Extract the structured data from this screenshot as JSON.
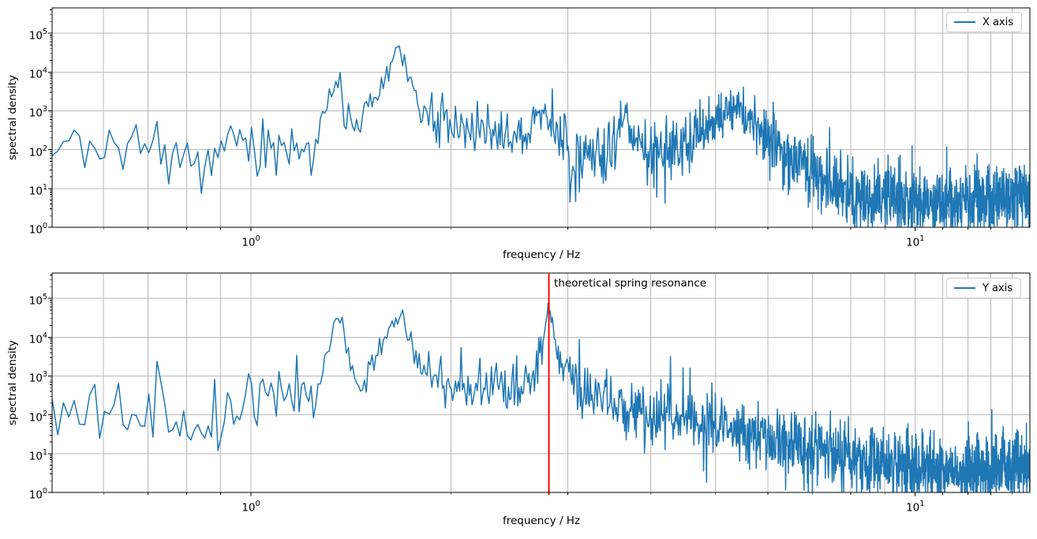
{
  "figure": {
    "background": "#ffffff",
    "grid_color": "#b9b9b9",
    "spine_color": "#000000",
    "tick_color": "#000000"
  },
  "chart_data": [
    {
      "type": "line",
      "title": "",
      "xlabel": "frequency / Hz",
      "ylabel": "spectral density",
      "xscale": "log",
      "yscale": "log",
      "xlim": [
        0.502,
        14.88
      ],
      "ylim": [
        1,
        450000
      ],
      "grid": "x: major+minor verticals, y: major horizontals",
      "xticks_major": [
        {
          "f": 1,
          "exp": "0"
        },
        {
          "f": 10,
          "exp": "1"
        }
      ],
      "xticks_minor": [
        0.6,
        0.7,
        0.8,
        0.9,
        2,
        3,
        4,
        5,
        6,
        7,
        8,
        9,
        11,
        12,
        13,
        14
      ],
      "yticks_exponents": [
        0,
        1,
        2,
        3,
        4,
        5
      ],
      "legend": {
        "position": "upper right",
        "entries": [
          {
            "label": "X axis",
            "color": "#1f77b4"
          }
        ]
      },
      "annotations": [],
      "series": [
        {
          "name": "X axis",
          "color": "#1f77b4",
          "linewidth": 1.5,
          "sampling": {
            "f_start": 0.502,
            "f_end": 14.88,
            "df": 0.01,
            "seed": 20,
            "noise": "lognormal-decades"
          },
          "envelope_hz_value_sigma": [
            [
              0.5,
              110,
              0.35
            ],
            [
              0.62,
              120,
              0.35
            ],
            [
              0.75,
              130,
              0.35
            ],
            [
              0.82,
              60,
              0.45
            ],
            [
              0.84,
              15,
              0.55
            ],
            [
              0.86,
              100,
              0.35
            ],
            [
              1.0,
              110,
              0.32
            ],
            [
              1.15,
              120,
              0.32
            ],
            [
              1.26,
              140,
              0.32
            ],
            [
              1.3,
              1500,
              0.3
            ],
            [
              1.33,
              6000,
              0.22
            ],
            [
              1.36,
              4000,
              0.28
            ],
            [
              1.4,
              900,
              0.3
            ],
            [
              1.45,
              350,
              0.3
            ],
            [
              1.5,
              900,
              0.3
            ],
            [
              1.55,
              2500,
              0.28
            ],
            [
              1.6,
              8000,
              0.22
            ],
            [
              1.645,
              30000,
              0.15
            ],
            [
              1.67,
              52000,
              0.12
            ],
            [
              1.7,
              15000,
              0.2
            ],
            [
              1.75,
              3500,
              0.25
            ],
            [
              1.8,
              1200,
              0.28
            ],
            [
              1.9,
              600,
              0.3
            ],
            [
              2.0,
              420,
              0.3
            ],
            [
              2.15,
              330,
              0.32
            ],
            [
              2.3,
              280,
              0.32
            ],
            [
              2.45,
              260,
              0.32
            ],
            [
              2.6,
              300,
              0.32
            ],
            [
              2.7,
              500,
              0.3
            ],
            [
              2.76,
              1800,
              0.22
            ],
            [
              2.8,
              700,
              0.28
            ],
            [
              2.9,
              250,
              0.32
            ],
            [
              3.0,
              90,
              0.4
            ],
            [
              3.05,
              12,
              0.55
            ],
            [
              3.1,
              45,
              0.42
            ],
            [
              3.25,
              60,
              0.42
            ],
            [
              3.4,
              70,
              0.42
            ],
            [
              3.55,
              130,
              0.35
            ],
            [
              3.64,
              1200,
              0.28
            ],
            [
              3.68,
              600,
              0.3
            ],
            [
              3.75,
              160,
              0.35
            ],
            [
              3.9,
              90,
              0.4
            ],
            [
              4.05,
              80,
              0.42
            ],
            [
              4.2,
              90,
              0.42
            ],
            [
              4.4,
              120,
              0.4
            ],
            [
              4.6,
              200,
              0.38
            ],
            [
              4.8,
              350,
              0.35
            ],
            [
              5.0,
              600,
              0.33
            ],
            [
              5.2,
              1000,
              0.3
            ],
            [
              5.35,
              1300,
              0.3
            ],
            [
              5.5,
              900,
              0.32
            ],
            [
              5.7,
              500,
              0.35
            ],
            [
              5.9,
              280,
              0.38
            ],
            [
              6.1,
              160,
              0.4
            ],
            [
              6.4,
              80,
              0.42
            ],
            [
              6.7,
              40,
              0.45
            ],
            [
              7.0,
              25,
              0.45
            ],
            [
              7.4,
              14,
              0.45
            ],
            [
              7.8,
              9,
              0.45
            ],
            [
              8.2,
              6.5,
              0.45
            ],
            [
              8.8,
              5.5,
              0.45
            ],
            [
              9.5,
              5,
              0.45
            ],
            [
              10.5,
              4.5,
              0.45
            ],
            [
              11.5,
              4.2,
              0.45
            ],
            [
              12.5,
              4.5,
              0.45
            ],
            [
              13.5,
              5,
              0.45
            ],
            [
              14.9,
              6,
              0.45
            ]
          ]
        }
      ]
    },
    {
      "type": "line",
      "title": "",
      "xlabel": "frequency / Hz",
      "ylabel": "spectral density",
      "xscale": "log",
      "yscale": "log",
      "xlim": [
        0.502,
        14.88
      ],
      "ylim": [
        1,
        450000
      ],
      "grid": "x: major+minor verticals, y: major horizontals",
      "xticks_major": [
        {
          "f": 1,
          "exp": "0"
        },
        {
          "f": 10,
          "exp": "1"
        }
      ],
      "xticks_minor": [
        0.6,
        0.7,
        0.8,
        0.9,
        2,
        3,
        4,
        5,
        6,
        7,
        8,
        9,
        11,
        12,
        13,
        14
      ],
      "yticks_exponents": [
        0,
        1,
        2,
        3,
        4,
        5
      ],
      "legend": {
        "position": "upper right",
        "entries": [
          {
            "label": "Y axis",
            "color": "#1f77b4"
          }
        ]
      },
      "vline": {
        "x_hz": 2.81,
        "color": "#ff0000",
        "linewidth": 2
      },
      "annotations": [
        {
          "text": "theoretical spring resonance",
          "x_hz": 2.86,
          "position": "top, right of vline"
        }
      ],
      "series": [
        {
          "name": "Y axis",
          "color": "#1f77b4",
          "linewidth": 1.5,
          "sampling": {
            "f_start": 0.502,
            "f_end": 14.88,
            "df": 0.01,
            "seed": 77,
            "noise": "lognormal-decades"
          },
          "envelope_hz_value_sigma": [
            [
              0.5,
              70,
              0.45
            ],
            [
              0.6,
              100,
              0.45
            ],
            [
              0.7,
              120,
              0.45
            ],
            [
              0.8,
              110,
              0.48
            ],
            [
              0.9,
              130,
              0.48
            ],
            [
              1.0,
              160,
              0.45
            ],
            [
              1.1,
              250,
              0.42
            ],
            [
              1.2,
              400,
              0.38
            ],
            [
              1.27,
              900,
              0.32
            ],
            [
              1.31,
              8000,
              0.22
            ],
            [
              1.345,
              45000,
              0.12
            ],
            [
              1.37,
              20000,
              0.18
            ],
            [
              1.41,
              3000,
              0.25
            ],
            [
              1.45,
              400,
              0.3
            ],
            [
              1.5,
              700,
              0.3
            ],
            [
              1.55,
              2500,
              0.25
            ],
            [
              1.6,
              9000,
              0.2
            ],
            [
              1.65,
              25000,
              0.15
            ],
            [
              1.68,
              33000,
              0.13
            ],
            [
              1.72,
              12000,
              0.2
            ],
            [
              1.78,
              3000,
              0.25
            ],
            [
              1.85,
              1200,
              0.3
            ],
            [
              1.95,
              600,
              0.38
            ],
            [
              2.05,
              450,
              0.45
            ],
            [
              2.2,
              380,
              0.48
            ],
            [
              2.35,
              450,
              0.42
            ],
            [
              2.5,
              550,
              0.38
            ],
            [
              2.62,
              800,
              0.33
            ],
            [
              2.7,
              2500,
              0.25
            ],
            [
              2.76,
              12000,
              0.18
            ],
            [
              2.8,
              60000,
              0.1
            ],
            [
              2.82,
              70000,
              0.1
            ],
            [
              2.86,
              9000,
              0.2
            ],
            [
              2.92,
              2000,
              0.28
            ],
            [
              3.0,
              900,
              0.32
            ],
            [
              3.1,
              500,
              0.35
            ],
            [
              3.25,
              320,
              0.4
            ],
            [
              3.45,
              220,
              0.42
            ],
            [
              3.7,
              150,
              0.45
            ],
            [
              4.0,
              110,
              0.45
            ],
            [
              4.3,
              85,
              0.45
            ],
            [
              4.6,
              70,
              0.45
            ],
            [
              5.0,
              55,
              0.45
            ],
            [
              5.4,
              40,
              0.45
            ],
            [
              5.8,
              30,
              0.45
            ],
            [
              6.2,
              22,
              0.45
            ],
            [
              6.7,
              15,
              0.45
            ],
            [
              7.2,
              11,
              0.45
            ],
            [
              7.8,
              8,
              0.45
            ],
            [
              8.5,
              6.5,
              0.45
            ],
            [
              9.5,
              5.5,
              0.45
            ],
            [
              10.5,
              4.5,
              0.45
            ],
            [
              11.5,
              3.8,
              0.45
            ],
            [
              12.5,
              4,
              0.45
            ],
            [
              13.5,
              4.5,
              0.45
            ],
            [
              14.9,
              5,
              0.45
            ]
          ]
        }
      ]
    }
  ]
}
